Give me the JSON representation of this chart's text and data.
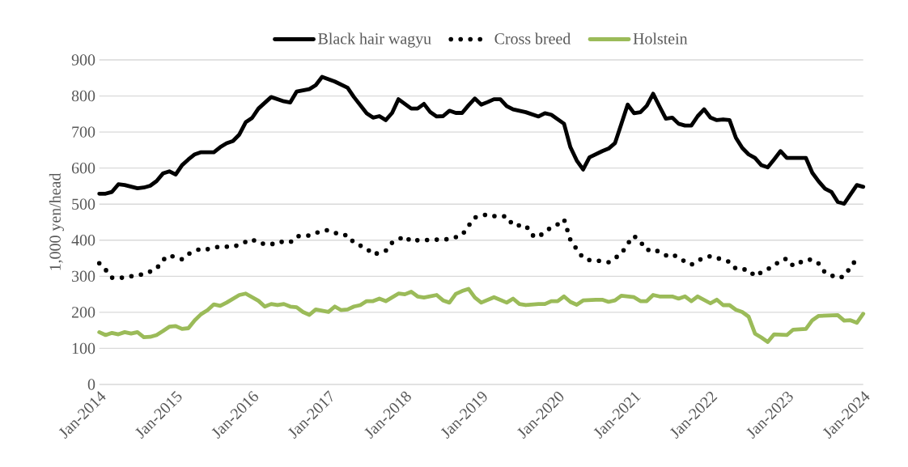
{
  "chart_data": {
    "type": "line",
    "ylabel": "1,000 yen/head",
    "xlim": [
      "2014-01",
      "2024-01"
    ],
    "xticks": [
      {
        "value": "2014-01",
        "label": "Jan-2014"
      },
      {
        "value": "2015-01",
        "label": "Jan-2015"
      },
      {
        "value": "2016-01",
        "label": "Jan-2016"
      },
      {
        "value": "2017-01",
        "label": "Jan-2017"
      },
      {
        "value": "2018-01",
        "label": "Jan-2018"
      },
      {
        "value": "2019-01",
        "label": "Jan-2019"
      },
      {
        "value": "2020-01",
        "label": "Jan-2020"
      },
      {
        "value": "2021-01",
        "label": "Jan-2021"
      },
      {
        "value": "2022-01",
        "label": "Jan-2022"
      },
      {
        "value": "2023-01",
        "label": "Jan-2023"
      },
      {
        "value": "2024-01",
        "label": "Jan-2024"
      }
    ],
    "ylim": [
      0,
      900
    ],
    "yticks": [
      0,
      100,
      200,
      300,
      400,
      500,
      600,
      700,
      800,
      900
    ],
    "grid": "y",
    "legend": "top",
    "marker": "none",
    "series": [
      {
        "name": "Black hair wagyu",
        "color": "#000000",
        "line_style": "solid",
        "x": [
          "2014-01",
          "2014-02",
          "2014-03",
          "2014-04",
          "2014-05",
          "2014-07",
          "2014-08",
          "2014-09",
          "2014-10",
          "2014-11",
          "2014-12",
          "2015-01",
          "2015-02",
          "2015-03",
          "2015-04",
          "2015-05",
          "2015-07",
          "2015-08",
          "2015-09",
          "2015-10",
          "2015-11",
          "2015-12",
          "2016-01",
          "2016-02",
          "2016-04",
          "2016-06",
          "2016-07",
          "2016-08",
          "2016-10",
          "2016-11",
          "2016-12",
          "2017-02",
          "2017-04",
          "2017-05",
          "2017-07",
          "2017-08",
          "2017-09",
          "2017-10",
          "2017-11",
          "2017-12",
          "2018-01",
          "2018-02",
          "2018-03",
          "2018-04",
          "2018-05",
          "2018-06",
          "2018-07",
          "2018-08",
          "2018-09",
          "2018-10",
          "2018-11",
          "2018-12",
          "2019-01",
          "2019-02",
          "2019-03",
          "2019-04",
          "2019-05",
          "2019-06",
          "2019-08",
          "2019-10",
          "2019-11",
          "2019-12",
          "2020-02",
          "2020-03",
          "2020-04",
          "2020-05",
          "2020-06",
          "2020-08",
          "2020-09",
          "2020-10",
          "2020-11",
          "2020-12",
          "2021-01",
          "2021-02",
          "2021-03",
          "2021-04",
          "2021-05",
          "2021-06",
          "2021-07",
          "2021-08",
          "2021-09",
          "2021-10",
          "2021-11",
          "2021-12",
          "2022-01",
          "2022-02",
          "2022-03",
          "2022-04",
          "2022-05",
          "2022-06",
          "2022-07",
          "2022-08",
          "2022-09",
          "2022-10",
          "2022-11",
          "2022-12",
          "2023-01",
          "2023-04",
          "2023-05",
          "2023-06",
          "2023-07",
          "2023-08",
          "2023-09",
          "2023-10",
          "2023-11",
          "2023-12",
          "2024-01"
        ],
        "values": [
          529,
          529,
          534,
          555,
          553,
          544,
          546,
          551,
          564,
          585,
          591,
          582,
          608,
          624,
          638,
          644,
          644,
          658,
          669,
          675,
          693,
          727,
          739,
          765,
          797,
          785,
          782,
          812,
          819,
          830,
          853,
          840,
          823,
          797,
          752,
          740,
          744,
          733,
          753,
          791,
          778,
          765,
          765,
          778,
          755,
          743,
          744,
          759,
          753,
          753,
          774,
          793,
          776,
          783,
          791,
          791,
          772,
          763,
          755,
          743,
          752,
          748,
          723,
          658,
          621,
          596,
          630,
          647,
          654,
          669,
          722,
          776,
          752,
          755,
          773,
          806,
          771,
          737,
          740,
          723,
          718,
          718,
          744,
          763,
          740,
          733,
          735,
          733,
          684,
          656,
          638,
          628,
          608,
          602,
          624,
          647,
          628,
          628,
          587,
          563,
          543,
          534,
          506,
          501,
          527,
          553,
          548
        ]
      },
      {
        "name": "Cross breed",
        "color": "#000000",
        "line_style": "dotted",
        "x": [
          "2014-01",
          "2014-02",
          "2014-03",
          "2014-05",
          "2014-07",
          "2014-08",
          "2014-10",
          "2014-11",
          "2014-12",
          "2015-02",
          "2015-03",
          "2015-05",
          "2015-06",
          "2015-08",
          "2015-10",
          "2015-11",
          "2016-01",
          "2016-02",
          "2016-04",
          "2016-05",
          "2016-07",
          "2016-08",
          "2016-10",
          "2016-12",
          "2017-01",
          "2017-03",
          "2017-04",
          "2017-05",
          "2017-07",
          "2017-08",
          "2017-10",
          "2017-11",
          "2018-01",
          "2018-02",
          "2018-03",
          "2018-05",
          "2018-07",
          "2018-08",
          "2018-10",
          "2018-11",
          "2018-12",
          "2019-02",
          "2019-03",
          "2019-05",
          "2019-06",
          "2019-07",
          "2019-08",
          "2019-09",
          "2019-10",
          "2019-11",
          "2020-01",
          "2020-02",
          "2020-03",
          "2020-04",
          "2020-05",
          "2020-06",
          "2020-08",
          "2020-09",
          "2020-11",
          "2020-12",
          "2021-01",
          "2021-02",
          "2021-03",
          "2021-04",
          "2021-06",
          "2021-07",
          "2021-08",
          "2021-10",
          "2021-11",
          "2022-01",
          "2022-02",
          "2022-04",
          "2022-05",
          "2022-07",
          "2022-08",
          "2022-09",
          "2022-11",
          "2022-12",
          "2023-01",
          "2023-02",
          "2023-04",
          "2023-05",
          "2023-06",
          "2023-07",
          "2023-09",
          "2023-10",
          "2023-11",
          "2023-12"
        ],
        "values": [
          336,
          318,
          296,
          296,
          304,
          305,
          321,
          345,
          358,
          347,
          362,
          377,
          375,
          383,
          381,
          388,
          403,
          392,
          388,
          396,
          394,
          411,
          413,
          426,
          428,
          414,
          414,
          393,
          377,
          360,
          371,
          393,
          411,
          396,
          400,
          401,
          402,
          403,
          414,
          440,
          463,
          472,
          467,
          466,
          441,
          441,
          441,
          414,
          408,
          425,
          444,
          458,
          401,
          375,
          351,
          345,
          342,
          339,
          362,
          390,
          412,
          396,
          372,
          376,
          358,
          362,
          350,
          332,
          344,
          356,
          351,
          340,
          321,
          318,
          300,
          311,
          329,
          344,
          349,
          329,
          346,
          346,
          335,
          310,
          295,
          300,
          325,
          349
        ]
      },
      {
        "name": "Holstein",
        "color": "#9bbb59",
        "line_style": "solid",
        "x": [
          "2014-01",
          "2014-02",
          "2014-03",
          "2014-04",
          "2014-05",
          "2014-06",
          "2014-07",
          "2014-08",
          "2014-09",
          "2014-10",
          "2014-11",
          "2014-12",
          "2015-01",
          "2015-02",
          "2015-03",
          "2015-04",
          "2015-05",
          "2015-06",
          "2015-07",
          "2015-08",
          "2015-09",
          "2015-11",
          "2015-12",
          "2016-02",
          "2016-03",
          "2016-04",
          "2016-05",
          "2016-06",
          "2016-07",
          "2016-08",
          "2016-09",
          "2016-10",
          "2016-11",
          "2017-01",
          "2017-02",
          "2017-03",
          "2017-04",
          "2017-05",
          "2017-06",
          "2017-07",
          "2017-08",
          "2017-09",
          "2017-10",
          "2017-12",
          "2018-01",
          "2018-02",
          "2018-03",
          "2018-04",
          "2018-06",
          "2018-07",
          "2018-08",
          "2018-09",
          "2018-10",
          "2018-11",
          "2018-12",
          "2019-01",
          "2019-03",
          "2019-05",
          "2019-06",
          "2019-07",
          "2019-08",
          "2019-10",
          "2019-11",
          "2019-12",
          "2020-01",
          "2020-02",
          "2020-03",
          "2020-04",
          "2020-05",
          "2020-07",
          "2020-08",
          "2020-09",
          "2020-10",
          "2020-11",
          "2021-01",
          "2021-02",
          "2021-03",
          "2021-04",
          "2021-05",
          "2021-07",
          "2021-08",
          "2021-09",
          "2021-10",
          "2021-11",
          "2022-01",
          "2022-02",
          "2022-03",
          "2022-04",
          "2022-05",
          "2022-06",
          "2022-07",
          "2022-08",
          "2022-09",
          "2022-10",
          "2022-11",
          "2023-01",
          "2023-02",
          "2023-04",
          "2023-05",
          "2023-06",
          "2023-09",
          "2023-10",
          "2023-11",
          "2023-12",
          "2024-01"
        ],
        "values": [
          145,
          137,
          143,
          139,
          145,
          141,
          145,
          131,
          132,
          137,
          148,
          160,
          162,
          154,
          156,
          178,
          195,
          206,
          222,
          218,
          227,
          248,
          252,
          232,
          216,
          223,
          220,
          223,
          216,
          214,
          201,
          193,
          208,
          201,
          216,
          206,
          208,
          216,
          220,
          231,
          231,
          238,
          231,
          252,
          250,
          257,
          244,
          241,
          248,
          233,
          227,
          251,
          259,
          265,
          241,
          227,
          242,
          227,
          238,
          223,
          220,
          223,
          223,
          231,
          231,
          244,
          229,
          221,
          233,
          235,
          235,
          229,
          233,
          246,
          242,
          231,
          231,
          248,
          244,
          244,
          238,
          244,
          231,
          244,
          225,
          235,
          220,
          220,
          207,
          201,
          188,
          141,
          130,
          118,
          139,
          137,
          152,
          154,
          178,
          190,
          192,
          177,
          178,
          171,
          196
        ]
      }
    ]
  }
}
